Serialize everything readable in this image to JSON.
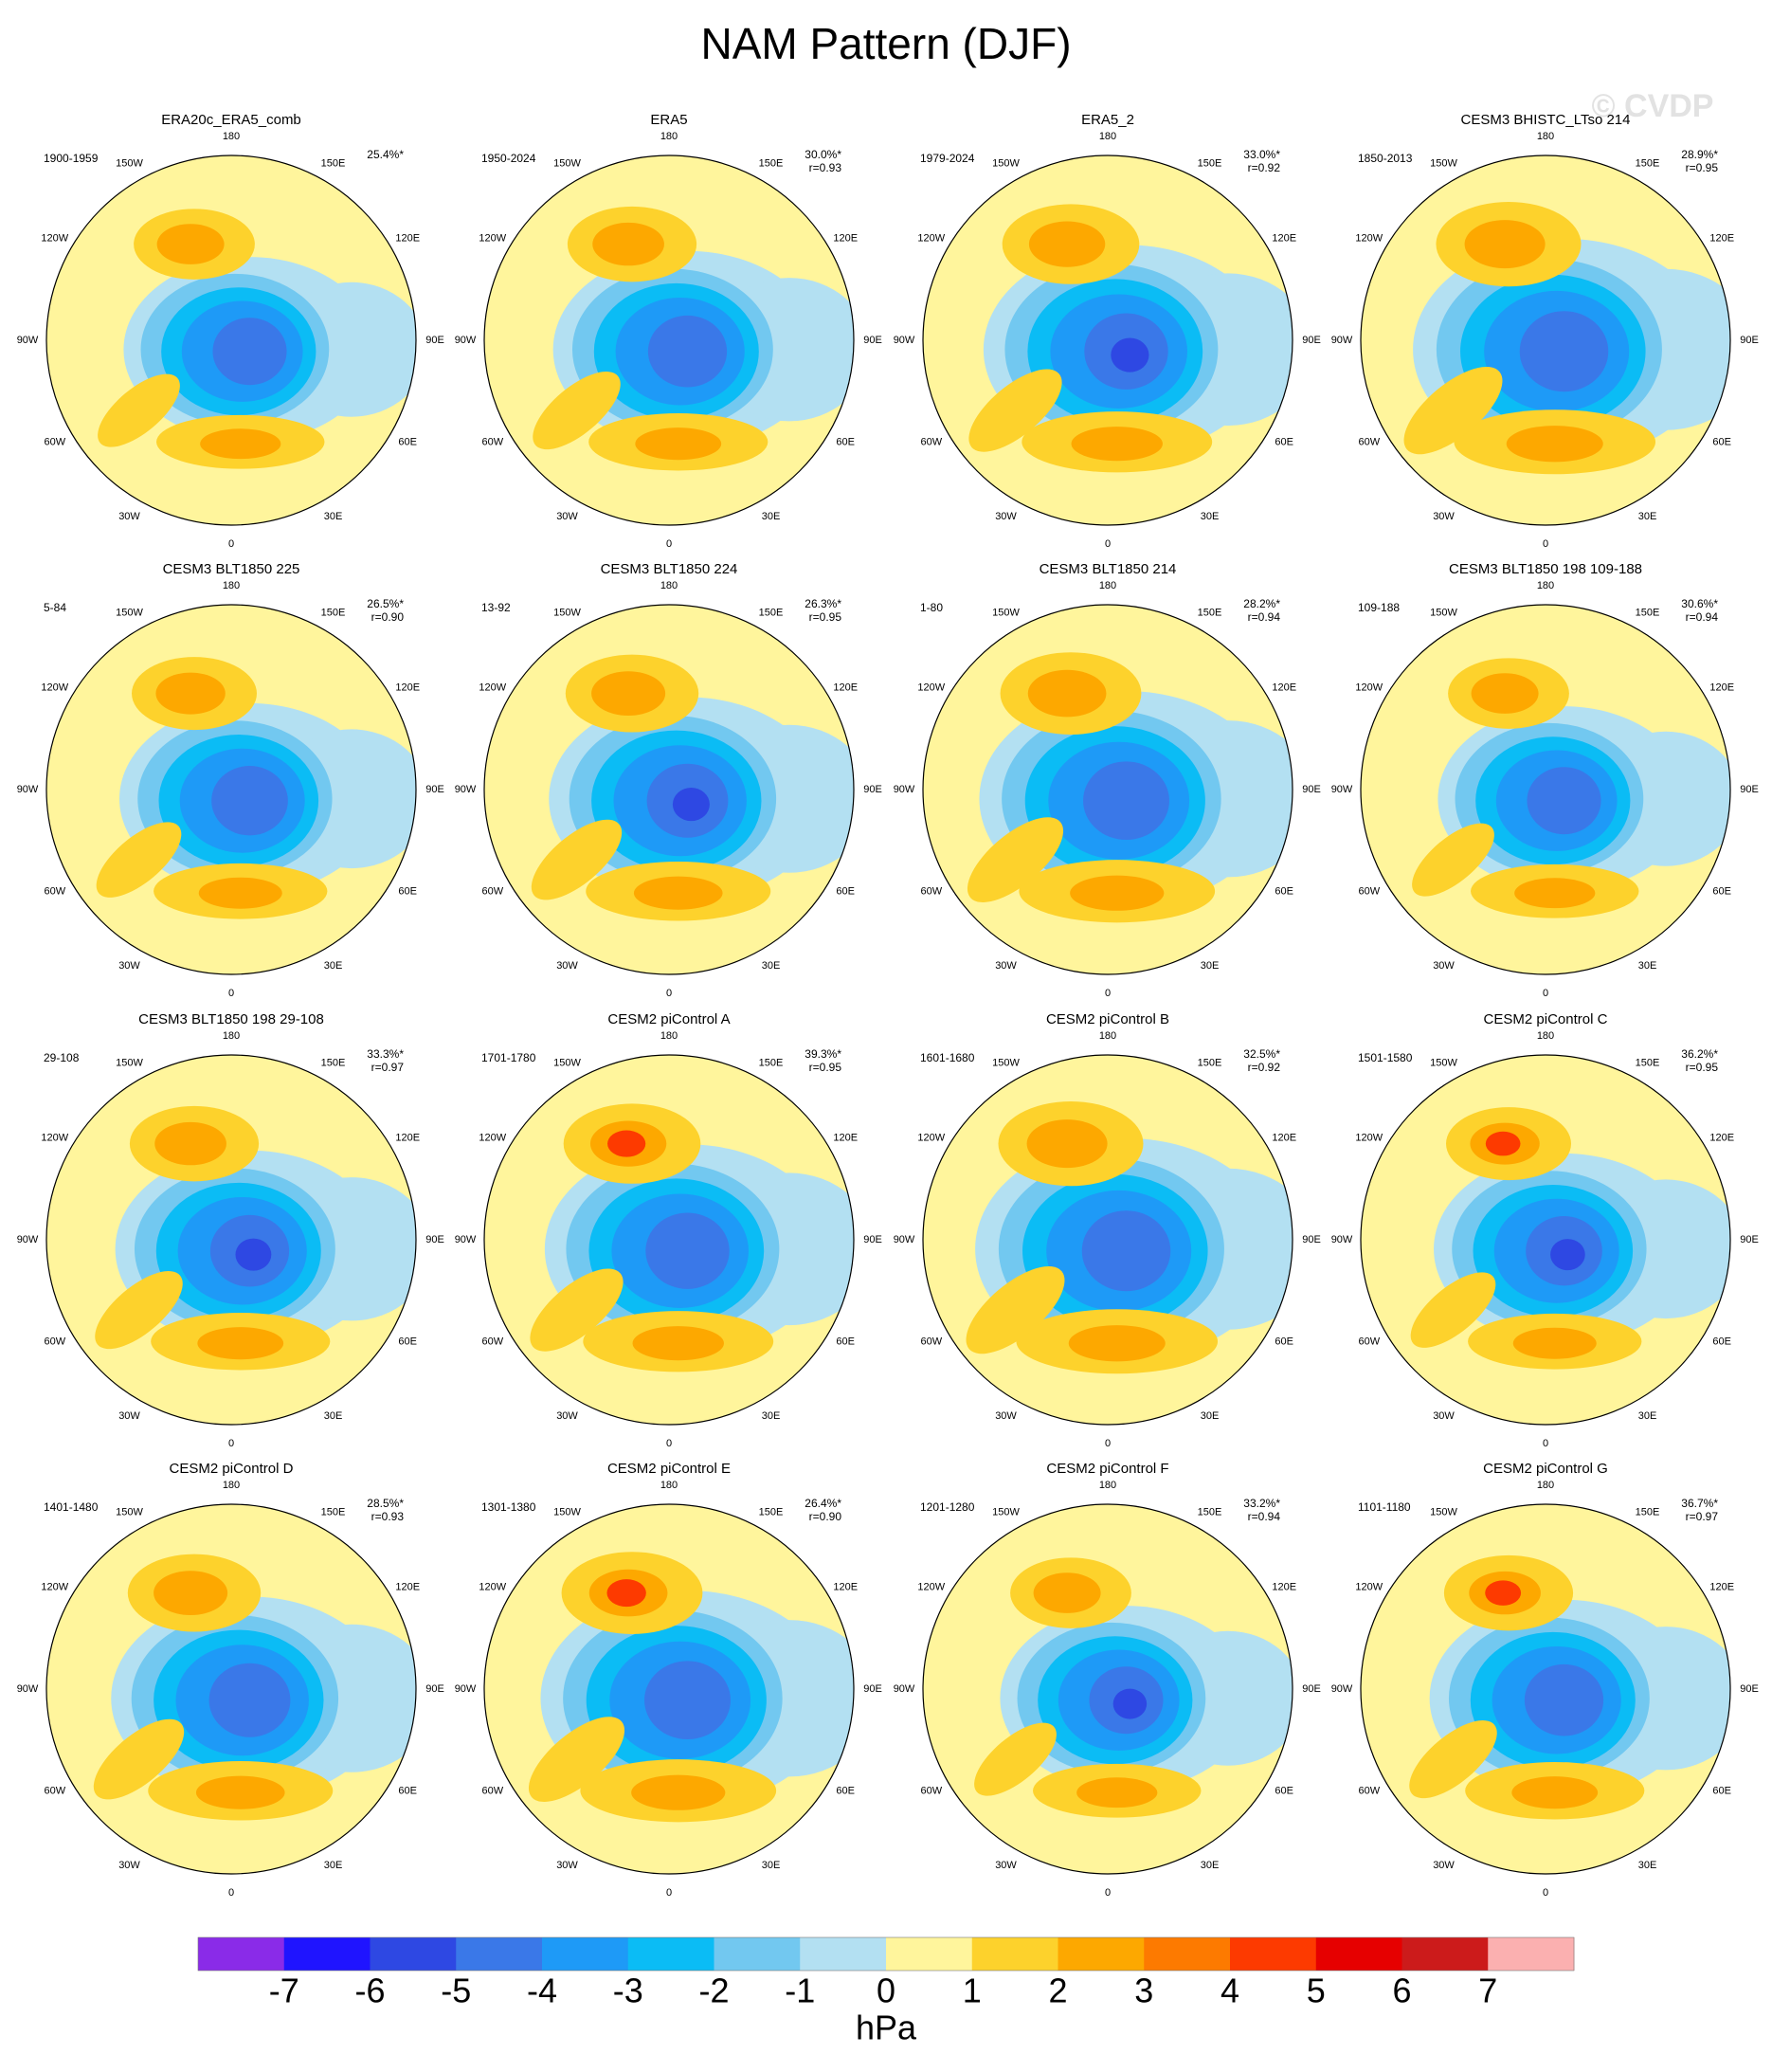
{
  "title": "NAM Pattern (DJF)",
  "watermark": "© CVDP",
  "lon_labels": [
    "180",
    "150E",
    "120E",
    "90E",
    "60E",
    "30E",
    "0",
    "30W",
    "60W",
    "90W",
    "120W",
    "150W"
  ],
  "panels": [
    {
      "title": "ERA20c_ERA5_comb",
      "period": "1900-1959",
      "pct": "25.4%*"
    },
    {
      "title": "ERA5",
      "period": "1950-2024",
      "pct": "30.0%*",
      "r": "r=0.93"
    },
    {
      "title": "ERA5_2",
      "period": "1979-2024",
      "pct": "33.0%*",
      "r": "r=0.92"
    },
    {
      "title": "CESM3 BHISTC_LTso 214",
      "period": "1850-2013",
      "pct": "28.9%*",
      "r": "r=0.95"
    },
    {
      "title": "CESM3 BLT1850 225",
      "period": "5-84",
      "pct": "26.5%*",
      "r": "r=0.90"
    },
    {
      "title": "CESM3 BLT1850 224",
      "period": "13-92",
      "pct": "26.3%*",
      "r": "r=0.95"
    },
    {
      "title": "CESM3 BLT1850 214",
      "period": "1-80",
      "pct": "28.2%*",
      "r": "r=0.94"
    },
    {
      "title": "CESM3 BLT1850 198 109-188",
      "period": "109-188",
      "pct": "30.6%*",
      "r": "r=0.94"
    },
    {
      "title": "CESM3 BLT1850 198 29-108",
      "period": "29-108",
      "pct": "33.3%*",
      "r": "r=0.97"
    },
    {
      "title": "CESM2 piControl A",
      "period": "1701-1780",
      "pct": "39.3%*",
      "r": "r=0.95"
    },
    {
      "title": "CESM2 piControl B",
      "period": "1601-1680",
      "pct": "32.5%*",
      "r": "r=0.92"
    },
    {
      "title": "CESM2 piControl C",
      "period": "1501-1580",
      "pct": "36.2%*",
      "r": "r=0.95"
    },
    {
      "title": "CESM2 piControl D",
      "period": "1401-1480",
      "pct": "28.5%*",
      "r": "r=0.93"
    },
    {
      "title": "CESM2 piControl E",
      "period": "1301-1380",
      "pct": "26.4%*",
      "r": "r=0.90"
    },
    {
      "title": "CESM2 piControl F",
      "period": "1201-1280",
      "pct": "33.2%*",
      "r": "r=0.94"
    },
    {
      "title": "CESM2 piControl G",
      "period": "1101-1180",
      "pct": "36.7%*",
      "r": "r=0.97"
    }
  ],
  "colorbar": {
    "colors": [
      "#8a2be8",
      "#1f14ff",
      "#2e48e3",
      "#3a78e8",
      "#1e9af7",
      "#0bbcf5",
      "#72c8f0",
      "#b3e0f2",
      "#fff59c",
      "#fdd22c",
      "#fda800",
      "#fd7a00",
      "#fd3a00",
      "#e60000",
      "#cc1b1b",
      "#fbb0b0"
    ],
    "ticks": [
      -7,
      -6,
      -5,
      -4,
      -3,
      -2,
      -1,
      0,
      1,
      2,
      3,
      4,
      5,
      6,
      7
    ],
    "label": "hPa"
  }
}
